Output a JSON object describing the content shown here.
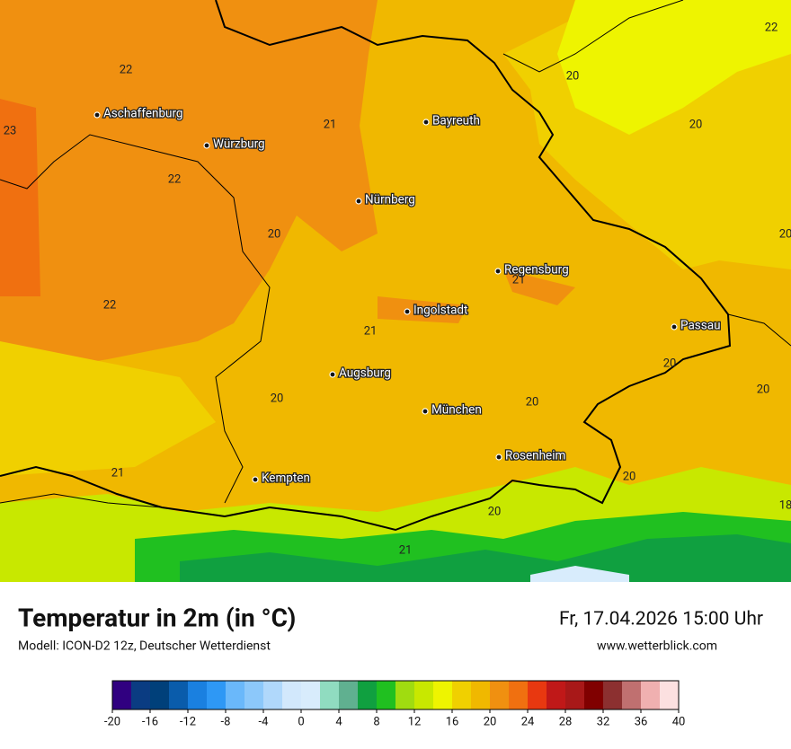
{
  "map": {
    "cities": [
      "Aschaffenburg",
      "Würzburg",
      "Bayreuth",
      "Nürnberg",
      "Regensburg",
      "Ingolstadt",
      "Passau",
      "Augsburg",
      "München",
      "Rosenheim",
      "Kempten"
    ],
    "temperature_labels": [
      22,
      23,
      21,
      22,
      20,
      22,
      21,
      21,
      20,
      20,
      21,
      20,
      21,
      20,
      20,
      20,
      20,
      20,
      22,
      20,
      18
    ]
  },
  "footer": {
    "title": "Temperatur in 2m (in °C)",
    "model": "Modell: ICON-D2 12z, Deutscher Wetterdienst",
    "datetime": "Fr, 17.04.2026 15:00 Uhr",
    "website": "www.wetterblick.com"
  },
  "colorbar": {
    "lim": [
      -20,
      40
    ],
    "ticks": [
      -20,
      -16,
      -12,
      -8,
      -4,
      0,
      4,
      8,
      12,
      16,
      20,
      24,
      28,
      32,
      36,
      40
    ],
    "colors": [
      "#300080",
      "#0a3c82",
      "#00407a",
      "#0a5cab",
      "#1a80e0",
      "#2e98f5",
      "#6ab8fa",
      "#8cc8fa",
      "#b0d8fb",
      "#d2e8fc",
      "#d8ecfc",
      "#90dcc0",
      "#60b090",
      "#10a040",
      "#20c020",
      "#a0dc10",
      "#c8e800",
      "#eef400",
      "#f0d000",
      "#f0b800",
      "#f09010",
      "#f07010",
      "#e83810",
      "#c01818",
      "#a81818",
      "#800000",
      "#8c3030",
      "#c07070",
      "#f0b0b0",
      "#fce0e0"
    ]
  }
}
